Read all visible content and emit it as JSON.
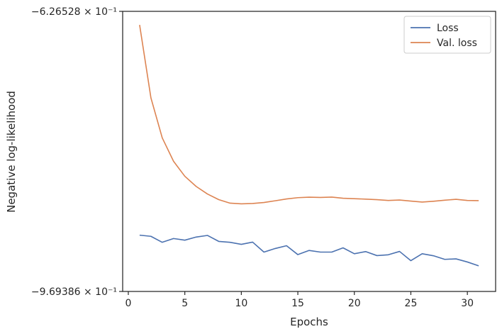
{
  "chart_data": {
    "type": "line",
    "xlabel": "Epochs",
    "ylabel": "Negative log-likelihood",
    "xlim": [
      -0.5,
      32.5
    ],
    "xticks": [
      0,
      5,
      10,
      15,
      20,
      25,
      30
    ],
    "ylim": [
      -0.969386,
      -0.626528
    ],
    "ytick_labels": [
      {
        "value": -0.626528,
        "label": "−6.26528 × 10⁻¹"
      },
      {
        "value": -0.969386,
        "label": "−9.69386 × 10⁻¹"
      }
    ],
    "legend_position": "top-right",
    "x": [
      1,
      2,
      3,
      4,
      5,
      6,
      7,
      8,
      9,
      10,
      11,
      12,
      13,
      14,
      15,
      16,
      17,
      18,
      19,
      20,
      21,
      22,
      23,
      24,
      25,
      26,
      27,
      28,
      29,
      30,
      31
    ],
    "series": [
      {
        "name": "Loss",
        "color": "#4c72b0",
        "values": [
          -0.9005,
          -0.9019,
          -0.9092,
          -0.9046,
          -0.9066,
          -0.9028,
          -0.9008,
          -0.9081,
          -0.9092,
          -0.9117,
          -0.909,
          -0.9212,
          -0.9168,
          -0.9134,
          -0.9243,
          -0.9192,
          -0.9212,
          -0.9212,
          -0.916,
          -0.9232,
          -0.9206,
          -0.9255,
          -0.9245,
          -0.9204,
          -0.9317,
          -0.9232,
          -0.9257,
          -0.9301,
          -0.9295,
          -0.9333,
          -0.938
        ]
      },
      {
        "name": "Val. loss",
        "color": "#dd8452",
        "values": [
          -0.6431,
          -0.7324,
          -0.7813,
          -0.81,
          -0.8284,
          -0.8408,
          -0.8501,
          -0.857,
          -0.8613,
          -0.8621,
          -0.8617,
          -0.8605,
          -0.8584,
          -0.8562,
          -0.8546,
          -0.854,
          -0.8543,
          -0.8539,
          -0.8553,
          -0.8558,
          -0.8564,
          -0.857,
          -0.858,
          -0.8575,
          -0.8588,
          -0.86,
          -0.859,
          -0.8577,
          -0.8566,
          -0.858,
          -0.8582
        ]
      }
    ]
  }
}
